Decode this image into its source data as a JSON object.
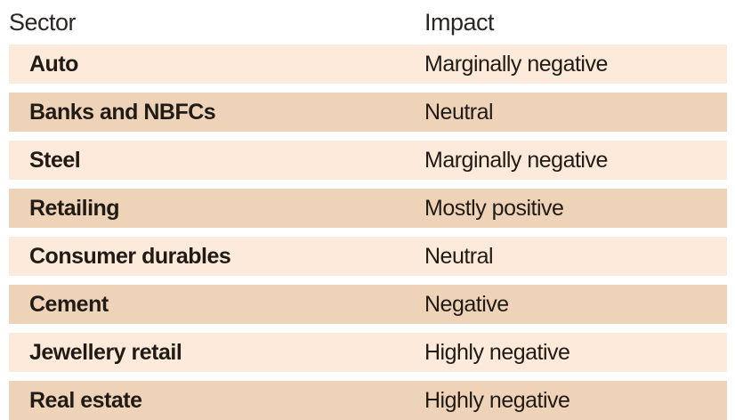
{
  "table": {
    "columns": [
      {
        "label": "Sector"
      },
      {
        "label": "Impact"
      }
    ],
    "rows": [
      {
        "sector": "Auto",
        "impact": "Marginally negative"
      },
      {
        "sector": "Banks and NBFCs",
        "impact": "Neutral"
      },
      {
        "sector": "Steel",
        "impact": "Marginally negative"
      },
      {
        "sector": "Retailing",
        "impact": "Mostly positive"
      },
      {
        "sector": "Consumer durables",
        "impact": "Neutral"
      },
      {
        "sector": "Cement",
        "impact": "Negative"
      },
      {
        "sector": "Jewellery retail",
        "impact": "Highly negative"
      },
      {
        "sector": "Real estate",
        "impact": "Highly negative"
      }
    ],
    "colors": {
      "row_light": "#fdeada",
      "row_dark": "#efd3b8",
      "text": "#211b15"
    }
  },
  "chart_data": {
    "type": "table",
    "columns": [
      "Sector",
      "Impact"
    ],
    "rows": [
      [
        "Auto",
        "Marginally negative"
      ],
      [
        "Banks and NBFCs",
        "Neutral"
      ],
      [
        "Steel",
        "Marginally negative"
      ],
      [
        "Retailing",
        "Mostly positive"
      ],
      [
        "Consumer durables",
        "Neutral"
      ],
      [
        "Cement",
        "Negative"
      ],
      [
        "Jewellery retail",
        "Highly negative"
      ],
      [
        "Real estate",
        "Highly negative"
      ]
    ],
    "title": "",
    "layout_hints": {
      "striped_rows": true,
      "header_background": "#ffffff",
      "alternating_row_colors": [
        "#fdeada",
        "#efd3b8"
      ]
    }
  }
}
